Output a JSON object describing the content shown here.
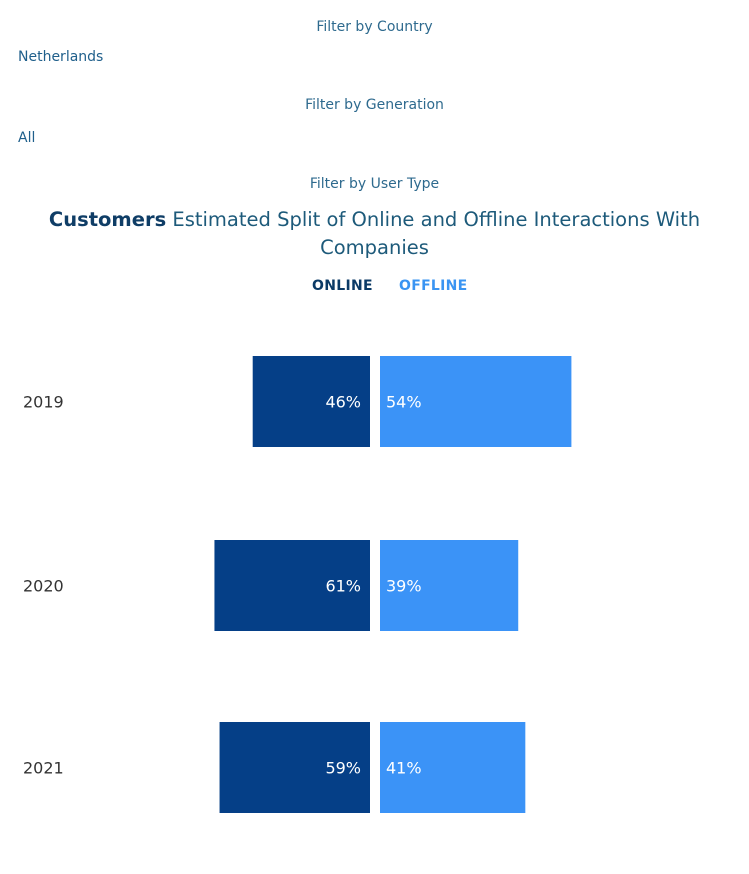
{
  "filters": [
    {
      "label": "Filter by Country",
      "value": "Netherlands"
    },
    {
      "label": "Filter by Generation",
      "value": "All"
    },
    {
      "label": "Filter by User Type",
      "value": ""
    }
  ],
  "title": {
    "emphasis": "Customers",
    "rest": " Estimated Split of Online and Offline Interactions With Companies"
  },
  "legend": {
    "online": "ONLINE",
    "offline": "OFFLINE"
  },
  "colors": {
    "online": "#053f87",
    "offline": "#3b93f7"
  },
  "chart_data": {
    "type": "bar",
    "orientation": "horizontal",
    "stacking": "diverging",
    "categories": [
      "2019",
      "2020",
      "2021"
    ],
    "series": [
      {
        "name": "ONLINE",
        "values": [
          46,
          61,
          59
        ],
        "labels": [
          "46%",
          "61%",
          "59%"
        ]
      },
      {
        "name": "OFFLINE",
        "values": [
          54,
          39,
          41
        ],
        "labels": [
          "54%",
          "39%",
          "41%"
        ]
      }
    ],
    "title": "Customers Estimated Split of Online and Offline Interactions With Companies",
    "xlabel": "",
    "ylabel": "",
    "grid": false,
    "legend_position": "top"
  }
}
